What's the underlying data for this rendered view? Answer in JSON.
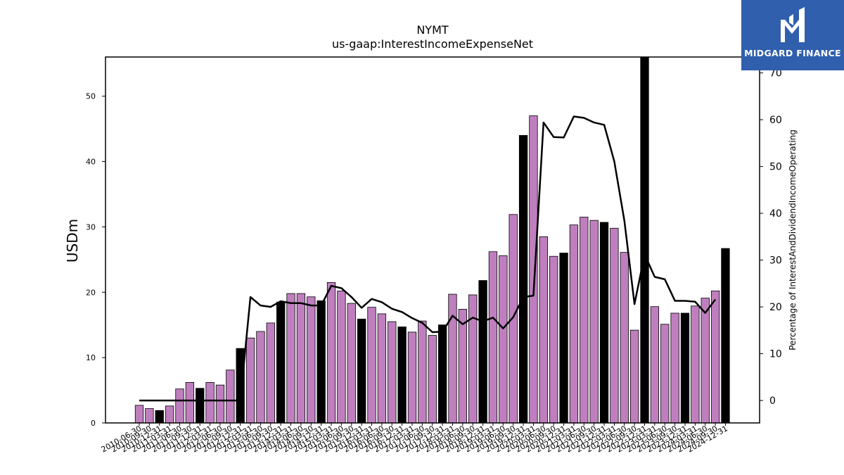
{
  "brand": {
    "name": "MIDGARD FINANCE"
  },
  "chart_data": {
    "type": "bar",
    "title": "NYMT",
    "subtitle": "us-gaap:InterestIncomeExpenseNet",
    "ylabel": "USDm",
    "ylabel_right": "Percentage of InterestAndDividendIncomeOperating",
    "ylim": [
      0,
      56
    ],
    "ylim_right": [
      -4.8,
      73.4
    ],
    "yticks": [
      0,
      10,
      20,
      30,
      40,
      50
    ],
    "yticks_right": [
      0,
      10,
      20,
      30,
      40,
      50,
      60,
      70
    ],
    "grid": false,
    "colors": {
      "bar": "#bf7fbf",
      "bar_q4": "#000000",
      "line": "#000000",
      "logo_bg": "#2f5fad"
    },
    "categories": [
      "2010-06-30",
      "2010-09-30",
      "2010-12-31",
      "2011-03-31",
      "2011-06-30",
      "2011-09-30",
      "2011-12-31",
      "2012-03-31",
      "2012-06-30",
      "2012-09-30",
      "2012-12-31",
      "2013-03-31",
      "2013-06-30",
      "2013-09-30",
      "2013-12-31",
      "2014-03-31",
      "2014-06-30",
      "2014-09-30",
      "2014-12-31",
      "2015-03-31",
      "2015-06-30",
      "2015-09-30",
      "2015-12-31",
      "2016-03-31",
      "2016-06-30",
      "2016-09-30",
      "2016-12-31",
      "2017-03-31",
      "2017-06-30",
      "2017-09-30",
      "2017-12-31",
      "2018-03-31",
      "2018-06-30",
      "2018-09-30",
      "2018-12-31",
      "2019-03-31",
      "2019-06-30",
      "2019-09-30",
      "2019-12-31",
      "2020-03-31",
      "2020-06-30",
      "2020-09-30",
      "2020-12-31",
      "2021-03-31",
      "2021-06-30",
      "2021-09-30",
      "2021-12-31",
      "2022-03-31",
      "2022-06-30",
      "2022-09-30",
      "2022-12-31",
      "2023-03-31",
      "2023-06-30",
      "2023-09-30",
      "2023-12-31",
      "2024-03-31",
      "2024-06-30",
      "2024-09-30",
      "2024-12-31"
    ],
    "series": [
      {
        "type": "bar",
        "values": [
          2.7,
          2.2,
          1.9,
          2.6,
          5.2,
          6.2,
          5.3,
          6.2,
          5.8,
          8.1,
          11.4,
          13.0,
          14.0,
          15.3,
          18.5,
          19.8,
          19.8,
          19.3,
          18.7,
          21.5,
          20.2,
          18.3,
          15.9,
          17.7,
          16.7,
          15.5,
          14.7,
          13.9,
          15.6,
          13.4,
          15.0,
          19.7,
          17.4,
          19.6,
          21.8,
          26.2,
          25.6,
          31.9,
          44.0,
          47.0,
          28.5,
          25.5,
          26.0,
          30.3,
          31.5,
          31.0,
          30.7,
          29.8,
          26.1,
          14.2,
          56.2,
          17.8,
          15.1,
          16.8,
          16.8,
          17.9,
          19.1,
          20.2,
          26.7
        ]
      },
      {
        "type": "line",
        "axis": "right",
        "values": [
          0,
          0,
          0,
          0,
          0,
          0,
          0,
          0,
          0,
          0,
          0,
          22.1,
          20.3,
          20.0,
          21.2,
          20.8,
          20.8,
          20.3,
          20.3,
          24.5,
          24.0,
          22.1,
          19.8,
          21.7,
          21.0,
          19.6,
          18.9,
          17.6,
          16.6,
          14.6,
          14.7,
          18.1,
          16.3,
          17.7,
          16.9,
          17.7,
          15.4,
          17.8,
          22.1,
          22.4,
          59.4,
          56.3,
          56.2,
          60.7,
          60.4,
          59.4,
          58.9,
          51.1,
          38.4,
          20.6,
          31.2,
          26.4,
          25.9,
          21.3,
          21.3,
          21.1,
          18.7,
          21.6,
          null
        ]
      }
    ]
  }
}
